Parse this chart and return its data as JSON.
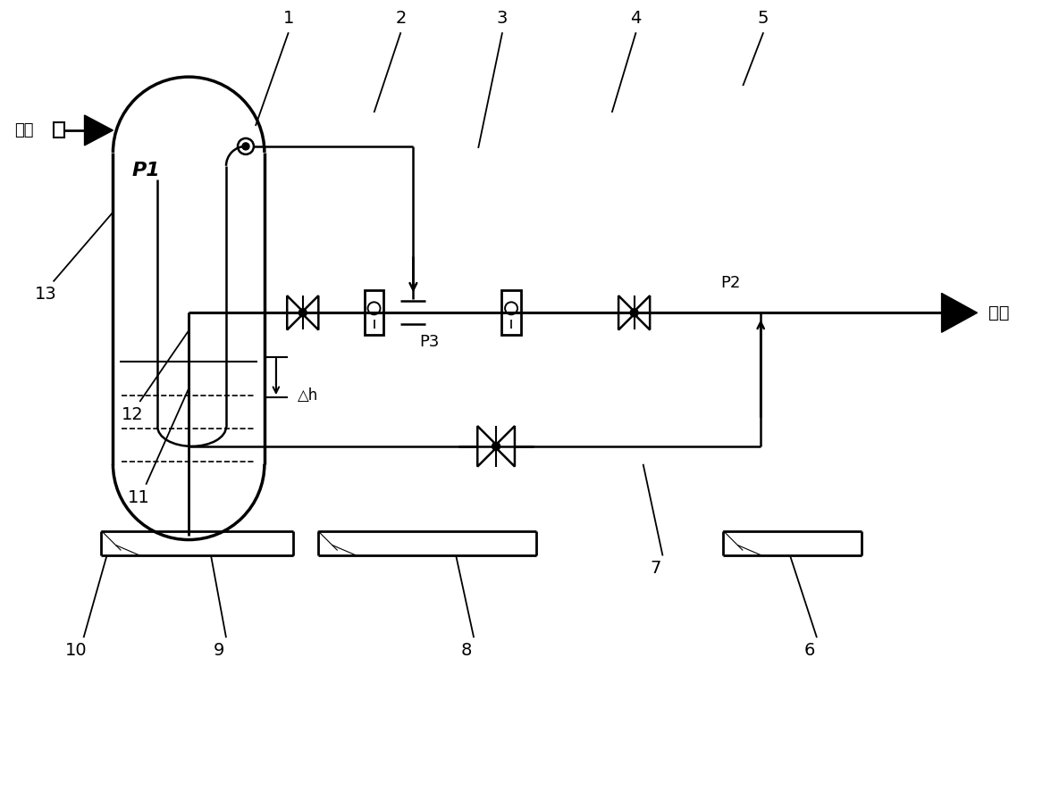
{
  "bg_color": "#ffffff",
  "lc": "#000000",
  "lw": 2.0,
  "fig_w": 11.76,
  "fig_h": 9.05,
  "labels": {
    "inlet": "入口",
    "outlet": "出口",
    "P1": "P1",
    "P2": "P2",
    "P3": "P3",
    "dh": "△h"
  },
  "numbers": [
    "1",
    "2",
    "3",
    "4",
    "5",
    "6",
    "7",
    "8",
    "9",
    "10",
    "11",
    "12",
    "13"
  ]
}
